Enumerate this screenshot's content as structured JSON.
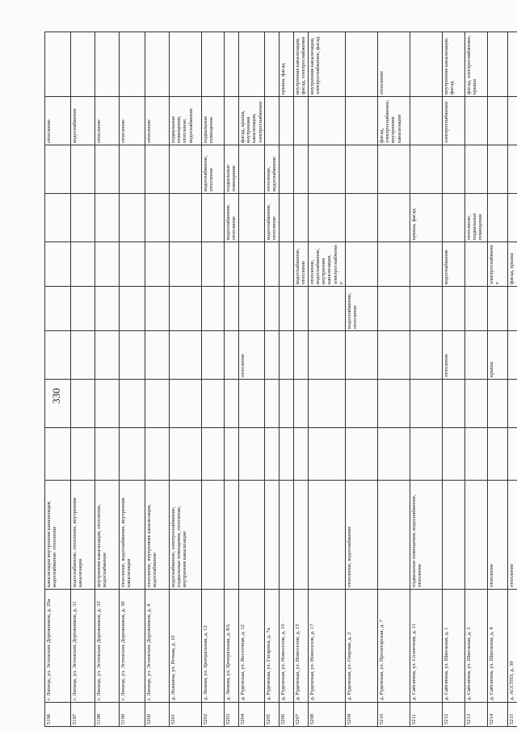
{
  "page_number": "330",
  "table": {
    "rows": [
      [
        "5196",
        "г. Липецк, ул. Эстонских Дорожников, д. 29а",
        "канализация внутренняя канализация, водоснабжение, отопление",
        null,
        null,
        null,
        null,
        null,
        null,
        null,
        "отопление",
        null
      ],
      [
        "5197",
        "г. Липецк, ул. Эстонских Дорожников, д. 31",
        "водоснабжение, отопление, внутренняя канализация",
        null,
        null,
        null,
        null,
        null,
        null,
        null,
        "водоснабжение",
        null
      ],
      [
        "5198",
        "г. Липецк, ул. Эстонских Дорожников, д. 33",
        "внутренняя канализация, отопление, водоснабжение",
        null,
        null,
        null,
        null,
        null,
        null,
        null,
        "отопление",
        null
      ],
      [
        "5199",
        "г. Липецк, ул. Эстонских Дорожников, д. 39",
        "отопление, водоснабжение, внутренняя канализация",
        null,
        null,
        null,
        null,
        null,
        null,
        null,
        "отопление",
        null
      ],
      [
        "5200",
        "г. Липецк, ул. Эстонских Дорожников, д. 4",
        "отопление, внутренняя канализация, водоснабжение",
        null,
        null,
        null,
        null,
        null,
        null,
        null,
        "отопление",
        null
      ],
      [
        "5201",
        "д. Ложкина, ул. Речная, д. 10",
        "водоснабжение, электроснабжение, подвальные помещения, отопление, внутренняя канализация",
        null,
        null,
        null,
        null,
        null,
        null,
        null,
        "подвальные помещения, отопление, водоснабжение",
        null
      ],
      [
        "5202",
        "д. Линева, ул. Центральная, д. 12",
        null,
        null,
        null,
        null,
        null,
        null,
        null,
        "водоснабжение, отопление",
        "подвальные помещения",
        null
      ],
      [
        "5203",
        "д. Линева, ул. Центральная, д. 8А",
        null,
        null,
        null,
        null,
        null,
        null,
        "водоснабжение, отопление",
        "подвальные помещения",
        null,
        null
      ],
      [
        "5204",
        "д. Руденская, ул. Восточная, д. 12",
        null,
        null,
        null,
        "отопление",
        null,
        null,
        null,
        null,
        "фасад, крыша, внутренняя канализация, электроснабжение",
        null
      ],
      [
        "5205",
        "д. Руденская, ул. Гагарина, д. 7а",
        null,
        null,
        null,
        null,
        null,
        null,
        "водоснабжение, отопление",
        "отопление, водоснабжение",
        null,
        null
      ],
      [
        "5206",
        "д. Руденская, ул. Новоселов, д. 10",
        null,
        null,
        null,
        null,
        null,
        null,
        null,
        null,
        null,
        "крыша, фасад"
      ],
      [
        "5207",
        "д. Руденская, ул. Новоселов, д. 15",
        null,
        null,
        null,
        null,
        null,
        "водоснабжение, отопление",
        null,
        null,
        null,
        "внутренняя канализация, фасад, электроснабжение"
      ],
      [
        "5208",
        "д. Руденская, ул. Новоселов, д. 17",
        null,
        null,
        null,
        null,
        null,
        "отопление, водоснабжение, внутренняя канализация, электроснабжение",
        null,
        null,
        null,
        "внутренняя канализация, электроснабжение, фасад"
      ],
      [
        "5209",
        "д. Руденская, ул. Озерная, д. 2",
        "отопление, водоснабжение",
        null,
        null,
        null,
        "водоснабжение, отопление",
        null,
        null,
        null,
        null,
        null
      ],
      [
        "5210",
        "д. Руденская, ул. Пролетарская, д. 7",
        null,
        null,
        null,
        null,
        null,
        null,
        null,
        null,
        "фасад, электроснабжение, внутренняя канализация",
        "отопление"
      ],
      [
        "5211",
        "д. Сайгатина, ул. Солнечная, д. 11",
        "подвальные помещения, водоснабжение, отопление",
        null,
        null,
        null,
        null,
        null,
        "крыша, фасад",
        null,
        null,
        null
      ],
      [
        "5212",
        "д. Сайгатина, ул. Школьная, д. 1",
        null,
        null,
        null,
        "отопление",
        null,
        "водоснабжение",
        null,
        null,
        "электроснабжение",
        "внутренняя канализация, фасад"
      ],
      [
        "5213",
        "д. Сайгатина, ул. Школьная, д. 3",
        null,
        null,
        null,
        null,
        null,
        null,
        "отопление, подвальные помещения",
        null,
        null,
        "фасад, электроснабжение, крыша"
      ],
      [
        "5214",
        "д. Сайгатина, ул. Школьная, д. 4",
        "отопление",
        null,
        null,
        "крыша",
        null,
        "электроснабжение",
        null,
        null,
        null,
        null
      ],
      [
        "5215",
        "д. АССТПЗ, д. 39",
        "отопление",
        null,
        null,
        null,
        null,
        "фасад, крыша",
        null,
        null,
        null,
        null
      ]
    ]
  }
}
